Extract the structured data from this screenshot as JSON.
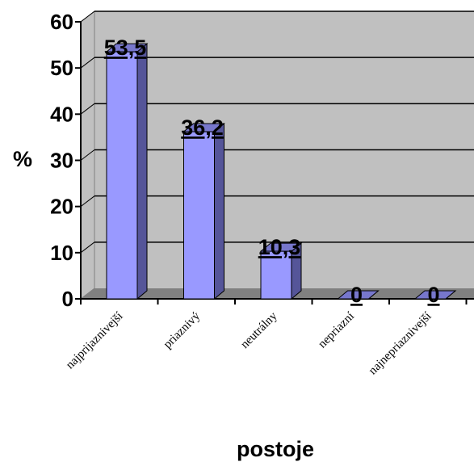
{
  "chart_data": {
    "type": "bar",
    "categories": [
      "najprijaznivejší",
      "priaznivý",
      "neutrálny",
      "nepriaznivý",
      "najnepriaznivejší"
    ],
    "category_tick_text": [
      "najprijaznivejší",
      "priaznivý",
      "neutrálny",
      "nepriazní",
      "najnepriaznivejší"
    ],
    "values": [
      53.5,
      36.2,
      10.3,
      0,
      0
    ],
    "value_labels": [
      "53,5",
      "36,2",
      "10,3",
      "0",
      "0"
    ],
    "xlabel": "postoje",
    "ylabel": "%",
    "ylim": [
      0,
      60
    ],
    "yticks": [
      0,
      10,
      20,
      30,
      40,
      50,
      60
    ],
    "ytick_labels": [
      "0",
      "10",
      "20",
      "30",
      "40",
      "50",
      "60"
    ],
    "grid": true,
    "style": "3d-column",
    "colors": {
      "bar_front": "#9999ff",
      "bar_side": "#555599",
      "bar_top": "#7777cc",
      "plot_wall": "#c0c0c0",
      "floor": "#808080",
      "gridline": "#000000"
    }
  }
}
